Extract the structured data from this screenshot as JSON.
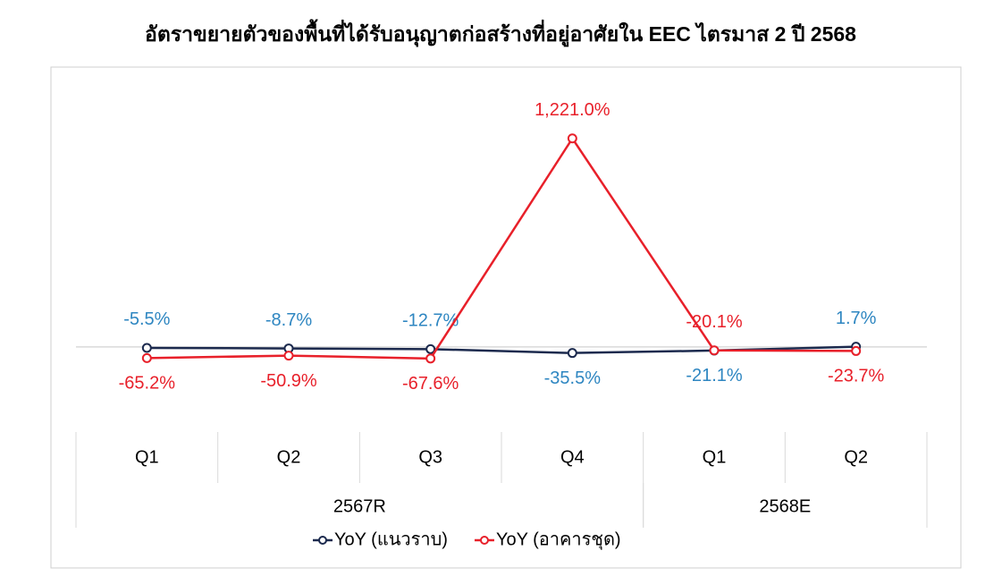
{
  "chart_data": {
    "type": "line",
    "title": "อัตราขยายตัวของพื้นที่ได้รับอนุญาตก่อสร้างที่อยู่อาศัยใน EEC ไตรมาส 2 ปี 2568",
    "categories": [
      "Q1",
      "Q2",
      "Q3",
      "Q4",
      "Q1",
      "Q2"
    ],
    "group_labels": [
      "2567R",
      "2568E"
    ],
    "group_sizes": [
      4,
      2
    ],
    "ylim": [
      -100,
      1400
    ],
    "series": [
      {
        "name": "YoY (แนวราบ)",
        "color": "#1c2a4e",
        "label_color": "#2e86c1",
        "values": [
          -5.5,
          -8.7,
          -12.7,
          -35.5,
          -21.1,
          1.7
        ],
        "value_labels": [
          "-5.5%",
          "-8.7%",
          "-12.7%",
          "-35.5%",
          "-21.1%",
          "1.7%"
        ],
        "label_position": [
          "above",
          "above",
          "above",
          "below",
          "below",
          "above"
        ]
      },
      {
        "name": "YoY (อาคารชุด)",
        "color": "#e8202a",
        "label_color": "#e8202a",
        "values": [
          -65.2,
          -50.9,
          -67.6,
          1221.0,
          -20.1,
          -23.7
        ],
        "value_labels": [
          "-65.2%",
          "-50.9%",
          "-67.6%",
          "1,221.0%",
          "-20.1%",
          "-23.7%"
        ],
        "label_position": [
          "below",
          "below",
          "below",
          "above",
          "above",
          "below"
        ]
      }
    ],
    "legend": "bottom"
  }
}
